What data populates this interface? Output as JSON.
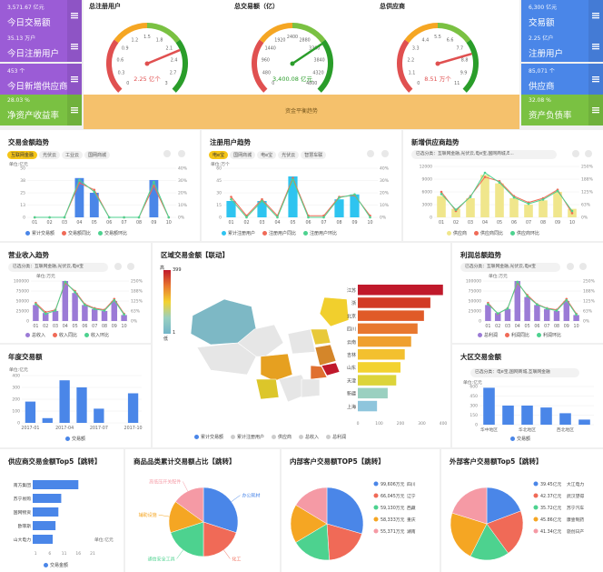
{
  "kpis_left": [
    {
      "value": "3,571.67 亿元",
      "label": "今日交易额",
      "color": "#9b5cd6"
    },
    {
      "value": "35.13 万户",
      "label": "今日注册用户",
      "color": "#9b5cd6"
    },
    {
      "value": "453 个",
      "label": "今日新增供应商",
      "color": "#9b5cd6"
    },
    {
      "value": "28.03 %",
      "label": "净资产收益率",
      "color": "#7ac142"
    }
  ],
  "kpis_right": [
    {
      "value": "6,300 亿元",
      "label": "交易额",
      "color": "#4a86e8"
    },
    {
      "value": "2.25 亿户",
      "label": "注册用户",
      "color": "#4a86e8"
    },
    {
      "value": "85,071 个",
      "label": "供应商",
      "color": "#4a86e8"
    },
    {
      "value": "32.08 %",
      "label": "资产负债率",
      "color": "#7ac142"
    }
  ],
  "gauges": [
    {
      "title": "总注册用户",
      "value": 2.25,
      "min": 0,
      "max": 3,
      "ticks": [
        "0",
        "0.3",
        "0.6",
        "0.9",
        "1.2",
        "1.5",
        "1.8",
        "2.1",
        "2.4",
        "2.7",
        "3"
      ],
      "readout": "2.25 亿个",
      "readout_color": "#e05050"
    },
    {
      "title": "总交易额（亿）",
      "value": 3400,
      "min": 0,
      "max": 4800,
      "ticks": [
        "0",
        "480",
        "960",
        "1440",
        "1920",
        "2400",
        "2880",
        "3360",
        "3840",
        "4320",
        "4800"
      ],
      "readout": "3,400.08 亿元",
      "readout_color": "#2a9d2a"
    },
    {
      "title": "总供应商",
      "value": 8.51,
      "min": 0,
      "max": 11,
      "ticks": [
        "0",
        "1.1",
        "2.2",
        "3.3",
        "4.4",
        "5.5",
        "6.6",
        "7.7",
        "8.8",
        "9.9",
        "11"
      ],
      "readout": "8.51 万个",
      "readout_color": "#e05050"
    }
  ],
  "banner": "资金平衡趋势",
  "trade": {
    "title": "交易金额趋势",
    "tabs": [
      "互联网金融",
      "光伏云",
      "工业云",
      "国网商城"
    ],
    "unit": "单位:亿元",
    "legend": [
      "累计交易额",
      "交易额同比",
      "交易额环比"
    ]
  },
  "users": {
    "title": "注册用户趋势",
    "tabs": [
      "电e宝",
      "国网商城",
      "电e宝",
      "光伏云",
      "智慧车联"
    ],
    "unit": "单位:万个",
    "legend": [
      "累计注册用户",
      "注册用户同比",
      "注册用户环比"
    ]
  },
  "supplier": {
    "title": "新增供应商趋势",
    "filter": "已选分类：互联网金融,光伏云,电e宝,国网商城,E...",
    "legend": [
      "供应商",
      "供应商同比",
      "供应商环比"
    ]
  },
  "revenue": {
    "title": "营业收入趋势",
    "filter": "已选分类：互联网金融,光伏云,电e宝",
    "unit": "单位:万元",
    "legend": [
      "总收入",
      "收入同比",
      "收入环比"
    ]
  },
  "profit": {
    "title": "利润总额趋势",
    "filter": "已选分类：互联网金融,光伏云,电e宝",
    "unit": "单位:万元",
    "legend": [
      "总利润",
      "利润同比",
      "利润环比"
    ]
  },
  "annual": {
    "title": "年度交易额",
    "unit": "单位:亿元",
    "legend": [
      "交易额"
    ]
  },
  "map": {
    "title": "区域交易金额【联动】",
    "scale_max": "399",
    "scale_min": "1",
    "scale_hi": "高",
    "scale_lo": "低",
    "legend": [
      "累计交易额",
      "累计注册用户",
      "供应商",
      "总收入",
      "总利润"
    ]
  },
  "regional": {
    "title": "大区交易金额",
    "filter": "已选分类：电e宝,国网商城,互联网金融",
    "unit": "单位:亿元",
    "legend": [
      "交易额"
    ]
  },
  "top5_supplier": {
    "title": "供应商交易金额Top5【跳转】",
    "unit": "单位:亿元",
    "legend": [
      "交易金额"
    ]
  },
  "category": {
    "title": "商品品类累计交易额占比【跳转】"
  },
  "internal": {
    "title": "内部客户交易额TOP5【跳转】"
  },
  "external": {
    "title": "外部客户交易额Top5【跳转】"
  },
  "chart_data": [
    {
      "type": "bar",
      "name": "trade",
      "categories": [
        "01",
        "02",
        "03",
        "04",
        "05",
        "06",
        "07",
        "08",
        "09",
        "10"
      ],
      "series": [
        {
          "name": "累计交易额",
          "values": [
            0,
            0,
            0,
            40,
            25,
            0,
            0,
            0,
            38,
            0
          ]
        },
        {
          "name": "交易额同比",
          "values": [
            0,
            0,
            0,
            35,
            28,
            0,
            0,
            0,
            32,
            0
          ]
        },
        {
          "name": "交易额环比",
          "values": [
            0,
            0,
            0,
            38,
            26,
            0,
            0,
            0,
            36,
            0
          ]
        }
      ],
      "ylim": [
        0,
        50
      ],
      "y2lim": [
        0,
        40
      ]
    },
    {
      "type": "bar",
      "name": "users",
      "categories": [
        "01",
        "02",
        "03",
        "04",
        "05",
        "06",
        "07",
        "08",
        "09",
        "10"
      ],
      "series": [
        {
          "name": "累计注册用户",
          "values": [
            20,
            0,
            20,
            0,
            50,
            0,
            0,
            22,
            28,
            0
          ]
        },
        {
          "name": "注册用户同比",
          "values": [
            25,
            2,
            22,
            2,
            48,
            2,
            2,
            25,
            27,
            2
          ]
        },
        {
          "name": "注册用户环比",
          "values": [
            22,
            0,
            20,
            0,
            46,
            0,
            0,
            24,
            28,
            0
          ]
        }
      ],
      "ylim": [
        0,
        60
      ],
      "y2lim": [
        0,
        40
      ]
    },
    {
      "type": "bar",
      "name": "supplier",
      "categories": [
        "01",
        "02",
        "03",
        "04",
        "05",
        "06",
        "07",
        "08",
        "09",
        "10"
      ],
      "series": [
        {
          "name": "供应商",
          "values": [
            5000,
            2000,
            4500,
            10000,
            8000,
            4500,
            3000,
            4000,
            6000,
            2000
          ]
        },
        {
          "name": "供应商同比",
          "values": [
            6000,
            1500,
            5000,
            9500,
            8500,
            5000,
            3500,
            4500,
            6500,
            1000
          ]
        },
        {
          "name": "供应商环比",
          "values": [
            5500,
            1800,
            4800,
            10500,
            8200,
            4700,
            3200,
            4200,
            6200,
            1500
          ]
        }
      ],
      "ylim": [
        0,
        12000
      ],
      "y2lim": [
        0,
        250
      ]
    },
    {
      "type": "bar",
      "name": "revenue",
      "categories": [
        "01",
        "02",
        "03",
        "04",
        "05",
        "06",
        "07",
        "08",
        "09",
        "10"
      ],
      "series": [
        {
          "name": "总收入",
          "values": [
            40000,
            20000,
            25000,
            100000,
            70000,
            40000,
            30000,
            25000,
            50000,
            15000
          ]
        },
        {
          "name": "收入同比",
          "values": [
            45000,
            22000,
            28000,
            95000,
            75000,
            42000,
            32000,
            28000,
            55000,
            18000
          ]
        },
        {
          "name": "收入环比",
          "values": [
            42000,
            18000,
            26000,
            98000,
            72000,
            40000,
            30000,
            26000,
            52000,
            16000
          ]
        }
      ],
      "ylim": [
        0,
        100000
      ],
      "y2lim": [
        0,
        250
      ]
    },
    {
      "type": "bar",
      "name": "profit",
      "categories": [
        "01",
        "02",
        "03",
        "04",
        "05",
        "06",
        "07",
        "08",
        "09",
        "10"
      ],
      "series": [
        {
          "name": "总利润",
          "values": [
            40000,
            20000,
            30000,
            100000,
            60000,
            40000,
            30000,
            25000,
            50000,
            15000
          ]
        },
        {
          "name": "利润同比",
          "values": [
            45000,
            18000,
            32000,
            95000,
            65000,
            42000,
            32000,
            28000,
            55000,
            18000
          ]
        },
        {
          "name": "利润环比",
          "values": [
            42000,
            19000,
            31000,
            98000,
            62000,
            41000,
            31000,
            26000,
            52000,
            16000
          ]
        }
      ],
      "ylim": [
        0,
        100000
      ],
      "y2lim": [
        0,
        250
      ]
    },
    {
      "type": "bar",
      "name": "annual",
      "categories": [
        "2017-01",
        "",
        "2017-04",
        "",
        "2017-07",
        "",
        "2017-10"
      ],
      "values": [
        180,
        40,
        360,
        300,
        120,
        0,
        250
      ],
      "ylim": [
        0,
        400
      ]
    },
    {
      "type": "bar",
      "name": "map_bars",
      "categories": [
        "江苏",
        "浙",
        "北京",
        "四川",
        "云南",
        "吉林",
        "山东",
        "天津",
        "新疆",
        "上海"
      ],
      "values": [
        399,
        340,
        310,
        280,
        250,
        220,
        200,
        180,
        140,
        90
      ],
      "xlim": [
        0,
        400
      ]
    },
    {
      "type": "bar",
      "name": "regional",
      "categories": [
        "华中地区",
        "",
        "华北地区",
        "",
        "西北地区",
        ""
      ],
      "values": [
        580,
        300,
        300,
        270,
        180,
        80
      ],
      "ylim": [
        0,
        600
      ]
    },
    {
      "type": "bar",
      "name": "top5_supplier",
      "orientation": "horizontal",
      "categories": [
        "南方集团",
        "苏宁易购",
        "国网物资",
        "欧菲斯",
        "山大电力"
      ],
      "values": [
        16,
        10,
        9,
        8,
        7
      ],
      "xlim": [
        0,
        21
      ],
      "ticks": [
        "1",
        "6",
        "11",
        "16",
        "21"
      ]
    },
    {
      "type": "pie",
      "name": "category",
      "labels": [
        "办公耗材",
        "化工",
        "通信安全工具",
        "辅助设施",
        "高低压开关配件"
      ],
      "values": [
        30,
        20,
        20,
        15,
        15
      ],
      "colors": [
        "#4a86e8",
        "#f06a57",
        "#4dd28f",
        "#f5a623",
        "#f59aa5"
      ]
    },
    {
      "type": "pie",
      "name": "internal",
      "labels": [
        "四川",
        "辽宁",
        "西藏",
        "重庆",
        "湖南"
      ],
      "values": [
        99606,
        66045,
        59130,
        58333,
        55371
      ],
      "value_labels": [
        "99,606万元",
        "66,045万元",
        "59,130万元",
        "58,333万元",
        "55,371万元"
      ],
      "colors": [
        "#4a86e8",
        "#f06a57",
        "#4dd28f",
        "#f5a623",
        "#f59aa5"
      ]
    },
    {
      "type": "pie",
      "name": "external",
      "labels": [
        "大江电力",
        "武汉望得",
        "苏宁汽车",
        "康壹制药",
        "骁创日产"
      ],
      "values": [
        39.45,
        42.37,
        35.72,
        45.86,
        41.34
      ],
      "value_labels": [
        "39.45亿元",
        "42.37亿元",
        "35.72亿元",
        "45.86亿元",
        "41.34亿元"
      ],
      "colors": [
        "#4a86e8",
        "#f06a57",
        "#4dd28f",
        "#f5a623",
        "#f59aa5"
      ]
    }
  ]
}
